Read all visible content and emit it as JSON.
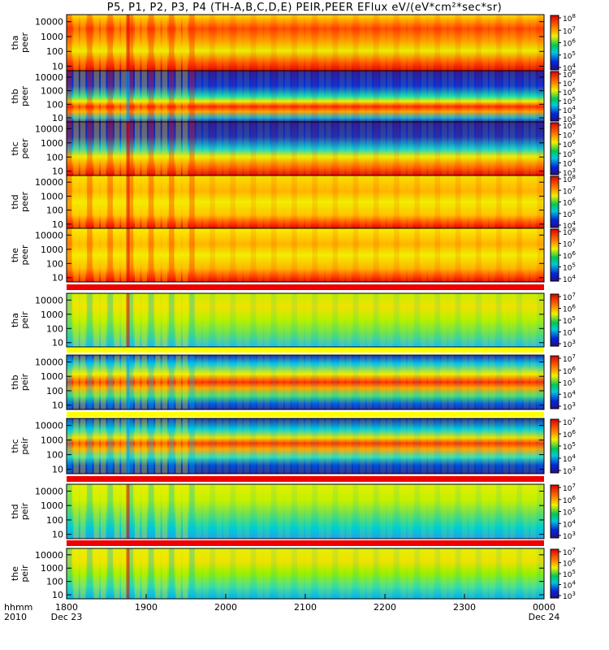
{
  "chart_data": {
    "type": "heatmap",
    "title": "P5, P1, P2, P3, P4 (TH-A,B,C,D,E) PEIR,PEER EFlux eV/(eV*cm²*sec*sr)",
    "x_axis": {
      "row_label": "hhmm",
      "year_label": "2010",
      "ticks": [
        {
          "label": "1800",
          "sub": "Dec 23",
          "hour": 18
        },
        {
          "label": "1900",
          "sub": "",
          "hour": 19
        },
        {
          "label": "2000",
          "sub": "",
          "hour": 20
        },
        {
          "label": "2100",
          "sub": "",
          "hour": 21
        },
        {
          "label": "2200",
          "sub": "",
          "hour": 22
        },
        {
          "label": "2300",
          "sub": "",
          "hour": 23
        },
        {
          "label": "0000",
          "sub": "Dec 24",
          "hour": 24
        }
      ],
      "xlim": [
        18,
        24
      ]
    },
    "panels": [
      {
        "probe": "tha",
        "species": "peer",
        "ylim": [
          5,
          30000
        ],
        "yticks": [
          10,
          100,
          1000,
          10000
        ],
        "ytick_labels": [
          "10",
          "100",
          "1000",
          "10000"
        ],
        "cbar_exp": [
          4,
          5,
          6,
          7,
          8
        ]
      },
      {
        "probe": "thb",
        "species": "peer",
        "ylim": [
          5,
          30000
        ],
        "yticks": [
          10,
          100,
          1000,
          10000
        ],
        "ytick_labels": [
          "10",
          "100",
          "1000",
          "10000"
        ],
        "cbar_exp": [
          3,
          4,
          5,
          6,
          7,
          8
        ]
      },
      {
        "probe": "thc",
        "species": "peer",
        "ylim": [
          5,
          30000
        ],
        "yticks": [
          10,
          100,
          1000,
          10000
        ],
        "ytick_labels": [
          "10",
          "100",
          "1000",
          "10000"
        ],
        "cbar_exp": [
          3,
          4,
          5,
          6,
          7,
          8
        ]
      },
      {
        "probe": "thd",
        "species": "peer",
        "ylim": [
          5,
          30000
        ],
        "yticks": [
          10,
          100,
          1000,
          10000
        ],
        "ytick_labels": [
          "10",
          "100",
          "1000",
          "10000"
        ],
        "cbar_exp": [
          4,
          5,
          6,
          7,
          8
        ]
      },
      {
        "probe": "the",
        "species": "peer",
        "ylim": [
          5,
          30000
        ],
        "yticks": [
          10,
          100,
          1000,
          10000
        ],
        "ytick_labels": [
          "10",
          "100",
          "1000",
          "10000"
        ],
        "cbar_exp": [
          4,
          5,
          6,
          7,
          8
        ]
      },
      {
        "probe": "tha",
        "species": "peir",
        "ylim": [
          5,
          30000
        ],
        "yticks": [
          10,
          100,
          1000,
          10000
        ],
        "ytick_labels": [
          "10",
          "100",
          "1000",
          "10000"
        ],
        "cbar_exp": [
          3,
          4,
          5,
          6,
          7
        ]
      },
      {
        "probe": "thb",
        "species": "peir",
        "ylim": [
          5,
          30000
        ],
        "yticks": [
          10,
          100,
          1000,
          10000
        ],
        "ytick_labels": [
          "10",
          "100",
          "1000",
          "10000"
        ],
        "cbar_exp": [
          3,
          4,
          5,
          6,
          7
        ]
      },
      {
        "probe": "thc",
        "species": "peir",
        "ylim": [
          5,
          30000
        ],
        "yticks": [
          10,
          100,
          1000,
          10000
        ],
        "ytick_labels": [
          "10",
          "100",
          "1000",
          "10000"
        ],
        "cbar_exp": [
          3,
          4,
          5,
          6,
          7
        ]
      },
      {
        "probe": "thd",
        "species": "peir",
        "ylim": [
          5,
          30000
        ],
        "yticks": [
          10,
          100,
          1000,
          10000
        ],
        "ytick_labels": [
          "10",
          "100",
          "1000",
          "10000"
        ],
        "cbar_exp": [
          3,
          4,
          5,
          6,
          7
        ]
      },
      {
        "probe": "the",
        "species": "peir",
        "ylim": [
          5,
          30000
        ],
        "yticks": [
          10,
          100,
          1000,
          10000
        ],
        "ytick_labels": [
          "10",
          "100",
          "1000",
          "10000"
        ],
        "cbar_exp": [
          3,
          4,
          5,
          6,
          7
        ]
      }
    ],
    "colorscale": "rainbow",
    "colors": {
      "low": "#1a0a8c",
      "high": "#e00000",
      "flag_red": "#ee0000",
      "flag_yellow": "#ffff00"
    }
  }
}
